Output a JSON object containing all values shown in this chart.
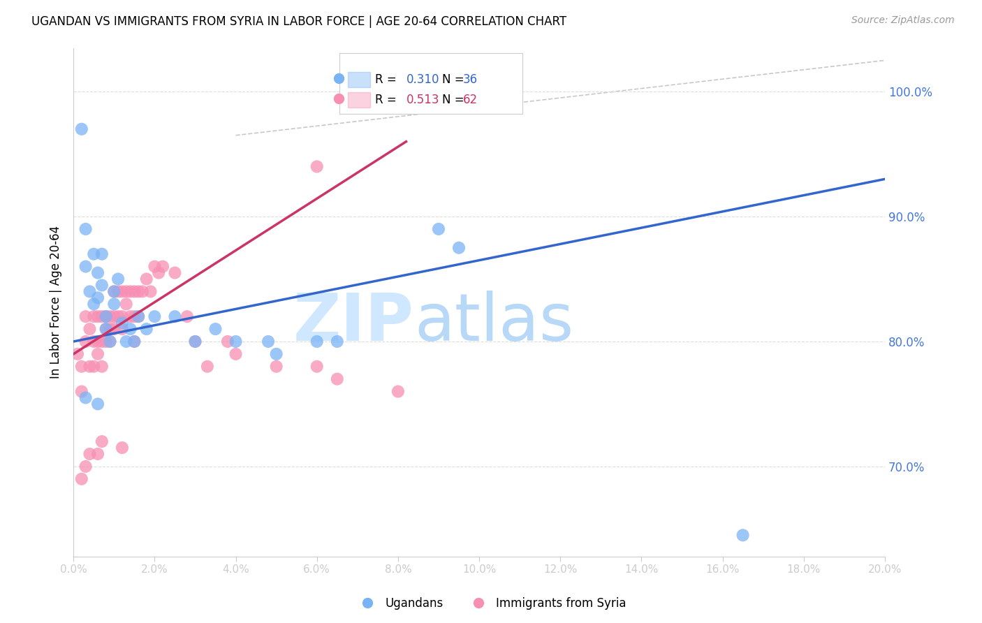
{
  "title": "UGANDAN VS IMMIGRANTS FROM SYRIA IN LABOR FORCE | AGE 20-64 CORRELATION CHART",
  "source": "Source: ZipAtlas.com",
  "ylabel": "In Labor Force | Age 20-64",
  "ytick_labels": [
    "70.0%",
    "80.0%",
    "90.0%",
    "100.0%"
  ],
  "ytick_values": [
    0.7,
    0.8,
    0.9,
    1.0
  ],
  "xmin": 0.0,
  "xmax": 0.2,
  "ymin": 0.628,
  "ymax": 1.035,
  "legend_R1": "0.310",
  "legend_N1": "36",
  "legend_R2": "0.513",
  "legend_N2": "62",
  "ugandan_color": "#7ab3f5",
  "syria_color": "#f78fb3",
  "blue_line_color": "#3366cc",
  "pink_line_color": "#cc3366",
  "ref_line_color": "#c8c8c8",
  "grid_color": "#dddddd",
  "axis_label_color": "#4477dd",
  "ugandans_x": [
    0.002,
    0.003,
    0.003,
    0.004,
    0.005,
    0.005,
    0.006,
    0.006,
    0.007,
    0.007,
    0.008,
    0.008,
    0.009,
    0.01,
    0.01,
    0.011,
    0.012,
    0.013,
    0.014,
    0.015,
    0.016,
    0.018,
    0.02,
    0.025,
    0.03,
    0.035,
    0.04,
    0.05,
    0.06,
    0.065,
    0.09,
    0.095,
    0.003,
    0.006,
    0.048,
    0.165
  ],
  "ugandans_y": [
    0.97,
    0.89,
    0.86,
    0.84,
    0.87,
    0.83,
    0.855,
    0.835,
    0.87,
    0.845,
    0.82,
    0.81,
    0.8,
    0.84,
    0.83,
    0.85,
    0.815,
    0.8,
    0.81,
    0.8,
    0.82,
    0.81,
    0.82,
    0.82,
    0.8,
    0.81,
    0.8,
    0.79,
    0.8,
    0.8,
    0.89,
    0.875,
    0.755,
    0.75,
    0.8,
    0.645
  ],
  "syria_x": [
    0.001,
    0.002,
    0.002,
    0.003,
    0.003,
    0.004,
    0.004,
    0.005,
    0.005,
    0.005,
    0.006,
    0.006,
    0.006,
    0.007,
    0.007,
    0.007,
    0.008,
    0.008,
    0.008,
    0.009,
    0.009,
    0.009,
    0.01,
    0.01,
    0.01,
    0.011,
    0.011,
    0.012,
    0.012,
    0.012,
    0.013,
    0.013,
    0.014,
    0.014,
    0.015,
    0.015,
    0.015,
    0.016,
    0.016,
    0.017,
    0.018,
    0.019,
    0.02,
    0.021,
    0.022,
    0.025,
    0.028,
    0.03,
    0.033,
    0.038,
    0.04,
    0.05,
    0.06,
    0.065,
    0.08,
    0.002,
    0.004,
    0.007,
    0.003,
    0.006,
    0.012,
    0.06
  ],
  "syria_y": [
    0.79,
    0.76,
    0.78,
    0.8,
    0.82,
    0.81,
    0.78,
    0.82,
    0.8,
    0.78,
    0.82,
    0.8,
    0.79,
    0.82,
    0.8,
    0.78,
    0.82,
    0.81,
    0.8,
    0.82,
    0.81,
    0.8,
    0.84,
    0.82,
    0.81,
    0.84,
    0.82,
    0.84,
    0.82,
    0.81,
    0.84,
    0.83,
    0.84,
    0.82,
    0.84,
    0.82,
    0.8,
    0.84,
    0.82,
    0.84,
    0.85,
    0.84,
    0.86,
    0.855,
    0.86,
    0.855,
    0.82,
    0.8,
    0.78,
    0.8,
    0.79,
    0.78,
    0.78,
    0.77,
    0.76,
    0.69,
    0.71,
    0.72,
    0.7,
    0.71,
    0.715,
    0.94
  ],
  "blue_line_x": [
    0.0,
    0.2
  ],
  "blue_line_y": [
    0.8,
    0.93
  ],
  "pink_line_x": [
    0.0,
    0.082
  ],
  "pink_line_y": [
    0.79,
    0.96
  ]
}
